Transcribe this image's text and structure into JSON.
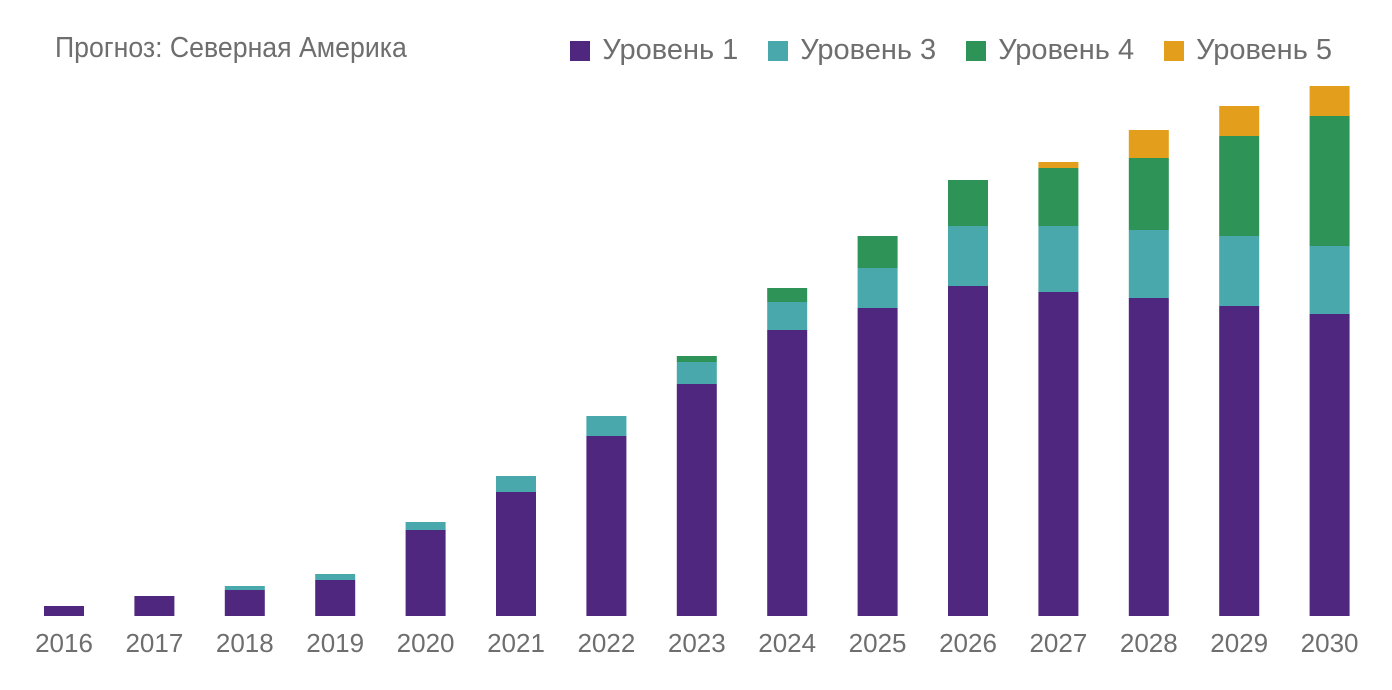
{
  "chart_data": {
    "type": "bar",
    "stacked": true,
    "title": "Прогноз: Северная Америка",
    "categories": [
      "2016",
      "2017",
      "2018",
      "2019",
      "2020",
      "2021",
      "2022",
      "2023",
      "2024",
      "2025",
      "2026",
      "2027",
      "2028",
      "2029",
      "2030"
    ],
    "series": [
      {
        "name": "Уровень 1",
        "color": "#4f277f",
        "values": [
          1.0,
          2.0,
          2.6,
          3.6,
          8.6,
          12.4,
          18.0,
          23.2,
          28.6,
          30.8,
          33.0,
          32.4,
          31.8,
          31.0,
          30.2
        ]
      },
      {
        "name": "Уровень 3",
        "color": "#48a8ab",
        "values": [
          0,
          0,
          0.4,
          0.6,
          0.8,
          1.6,
          2.0,
          2.2,
          2.8,
          4.0,
          6.0,
          6.6,
          6.8,
          7.0,
          6.8
        ]
      },
      {
        "name": "Уровень 4",
        "color": "#2d9357",
        "values": [
          0,
          0,
          0,
          0,
          0,
          0,
          0,
          0.6,
          1.4,
          3.2,
          4.6,
          5.8,
          7.2,
          10.0,
          13.0
        ]
      },
      {
        "name": "Уровень 5",
        "color": "#e39f1b",
        "values": [
          0,
          0,
          0,
          0,
          0,
          0,
          0,
          0,
          0,
          0,
          0,
          0.6,
          2.8,
          3.0,
          3.0
        ]
      }
    ],
    "ylim": [
      0,
      53
    ],
    "grid": false,
    "legend_position": "top-right"
  }
}
